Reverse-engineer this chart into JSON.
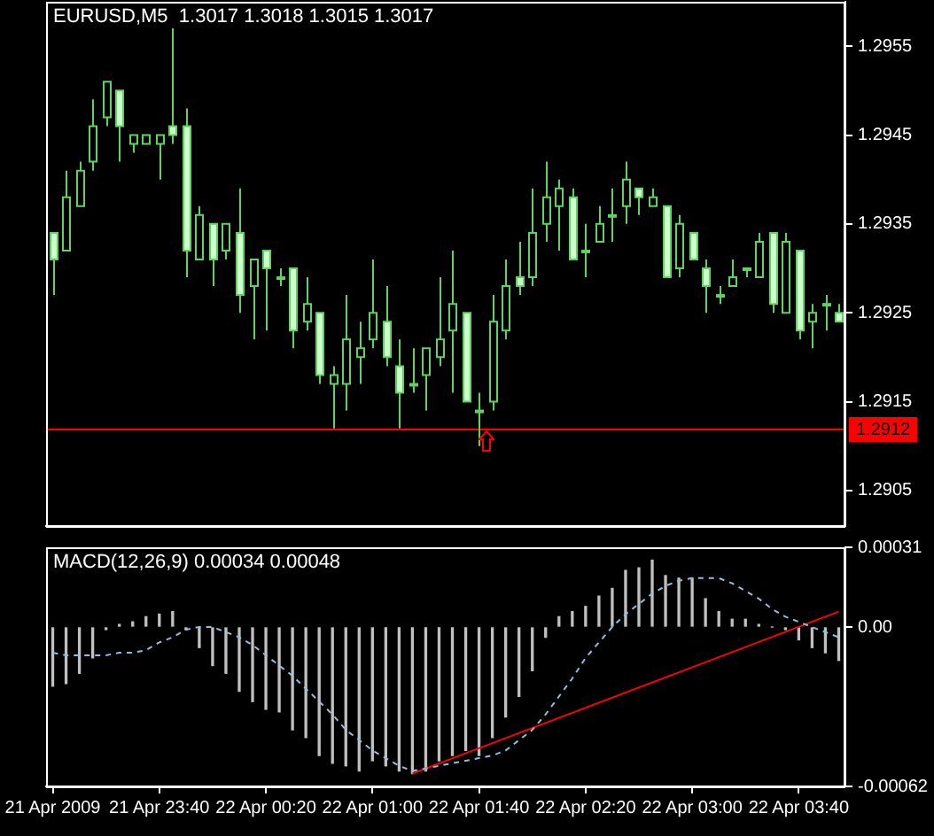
{
  "chart_data": [
    {
      "type": "candlestick",
      "title": "EURUSD,M5  1.3017 1.3018 1.3015 1.3017",
      "color": "#5fd35f",
      "ohlc": [
        [
          1.2934,
          1.2934,
          1.2927,
          1.2931
        ],
        [
          1.2932,
          1.2941,
          1.2932,
          1.2938
        ],
        [
          1.2937,
          1.2942,
          1.2937,
          1.2941
        ],
        [
          1.2942,
          1.2949,
          1.2941,
          1.2946
        ],
        [
          1.2947,
          1.2951,
          1.2946,
          1.2951
        ],
        [
          1.295,
          1.295,
          1.2942,
          1.2946
        ],
        [
          1.2944,
          1.2945,
          1.2943,
          1.2945
        ],
        [
          1.2944,
          1.2945,
          1.2944,
          1.2945
        ],
        [
          1.2944,
          1.2945,
          1.294,
          1.2945
        ],
        [
          1.2946,
          1.2957,
          1.2944,
          1.2945
        ],
        [
          1.2946,
          1.2948,
          1.2929,
          1.2932
        ],
        [
          1.2931,
          1.2937,
          1.2931,
          1.2936
        ],
        [
          1.2935,
          1.2935,
          1.2928,
          1.2931
        ],
        [
          1.2932,
          1.2935,
          1.2931,
          1.2935
        ],
        [
          1.2934,
          1.2939,
          1.2925,
          1.2927
        ],
        [
          1.2928,
          1.2931,
          1.2922,
          1.2931
        ],
        [
          1.2932,
          1.2932,
          1.2923,
          1.293
        ],
        [
          1.2929,
          1.293,
          1.2928,
          1.2929
        ],
        [
          1.293,
          1.293,
          1.2921,
          1.2923
        ],
        [
          1.2924,
          1.2929,
          1.2923,
          1.2926
        ],
        [
          1.2925,
          1.2925,
          1.2917,
          1.2918
        ],
        [
          1.2917,
          1.2919,
          1.2912,
          1.2918
        ],
        [
          1.2917,
          1.2927,
          1.2914,
          1.2922
        ],
        [
          1.292,
          1.2924,
          1.2917,
          1.2921
        ],
        [
          1.2922,
          1.2931,
          1.2921,
          1.2925
        ],
        [
          1.2924,
          1.2928,
          1.2919,
          1.292
        ],
        [
          1.2919,
          1.2922,
          1.2912,
          1.2916
        ],
        [
          1.2917,
          1.2921,
          1.2916,
          1.2917
        ],
        [
          1.2918,
          1.2921,
          1.2914,
          1.2921
        ],
        [
          1.292,
          1.2929,
          1.2919,
          1.2922
        ],
        [
          1.2923,
          1.2932,
          1.2916,
          1.2926
        ],
        [
          1.2925,
          1.2925,
          1.2915,
          1.2915
        ],
        [
          1.2914,
          1.2916,
          1.291,
          1.2914
        ],
        [
          1.2915,
          1.2927,
          1.2914,
          1.2924
        ],
        [
          1.2923,
          1.2931,
          1.2922,
          1.2928
        ],
        [
          1.2929,
          1.2933,
          1.2927,
          1.2928
        ],
        [
          1.2929,
          1.2939,
          1.2928,
          1.2934
        ],
        [
          1.2935,
          1.2942,
          1.2933,
          1.2938
        ],
        [
          1.2937,
          1.294,
          1.2932,
          1.2939
        ],
        [
          1.2938,
          1.2939,
          1.2931,
          1.2931
        ],
        [
          1.2932,
          1.2935,
          1.2929,
          1.2932
        ],
        [
          1.2933,
          1.2937,
          1.2933,
          1.2935
        ],
        [
          1.2936,
          1.2939,
          1.2933,
          1.2936
        ],
        [
          1.2937,
          1.2942,
          1.2935,
          1.294
        ],
        [
          1.2939,
          1.2939,
          1.2936,
          1.2938
        ],
        [
          1.2937,
          1.2939,
          1.2937,
          1.2938
        ],
        [
          1.2937,
          1.2937,
          1.2929,
          1.2929
        ],
        [
          1.293,
          1.2936,
          1.2929,
          1.2935
        ],
        [
          1.2934,
          1.2934,
          1.2931,
          1.2931
        ],
        [
          1.293,
          1.2931,
          1.2925,
          1.2928
        ],
        [
          1.2927,
          1.2928,
          1.2926,
          1.2927
        ],
        [
          1.2928,
          1.2931,
          1.2928,
          1.2929
        ],
        [
          1.293,
          1.293,
          1.2929,
          1.293
        ],
        [
          1.2929,
          1.2934,
          1.2929,
          1.2933
        ],
        [
          1.2934,
          1.2934,
          1.2925,
          1.2926
        ],
        [
          1.2925,
          1.2934,
          1.2925,
          1.2933
        ],
        [
          1.2932,
          1.2932,
          1.2922,
          1.2923
        ],
        [
          1.2924,
          1.2926,
          1.2921,
          1.2925
        ],
        [
          1.2926,
          1.2927,
          1.2923,
          1.2926
        ],
        [
          1.2925,
          1.2926,
          1.2924,
          1.2924
        ]
      ],
      "colors": [
        "#ccffcc",
        "#000000",
        "#000000",
        "#000000",
        "#000000",
        "#ccffcc",
        "#000000",
        "#000000",
        "#000000",
        "#ccffcc",
        "#ccffcc",
        "#000000",
        "#ccffcc",
        "#000000",
        "#ccffcc",
        "#000000",
        "#ccffcc",
        "#000000",
        "#ccffcc",
        "#000000",
        "#ccffcc",
        "#000000",
        "#000000",
        "#000000",
        "#000000",
        "#ccffcc",
        "#ccffcc",
        "#000000",
        "#000000",
        "#000000",
        "#000000",
        "#ccffcc",
        "#000000",
        "#000000",
        "#000000",
        "#ccffcc",
        "#000000",
        "#000000",
        "#000000",
        "#ccffcc",
        "#000000",
        "#000000",
        "#000000",
        "#000000",
        "#ccffcc",
        "#000000",
        "#ccffcc",
        "#000000",
        "#ccffcc",
        "#ccffcc",
        "#000000",
        "#000000",
        "#000000",
        "#000000",
        "#ccffcc",
        "#000000",
        "#ccffcc",
        "#000000",
        "#000000",
        "#ccffcc"
      ],
      "ylim": [
        1.2901,
        1.296
      ],
      "yticks": [
        1.2905,
        1.2915,
        1.2925,
        1.2935,
        1.2945,
        1.2955
      ],
      "ref_lines": [
        {
          "axis": "y",
          "value": 1.2912,
          "label": "1.2912",
          "color": "#ff0000"
        }
      ],
      "tick_labels": "y"
    },
    {
      "type": "bar",
      "title": "MACD(12,26,9) 0.00034 0.00048",
      "categories": [
        "21 Apr 2009",
        null,
        null,
        null,
        null,
        null,
        null,
        null,
        "21 Apr 23:40",
        null,
        null,
        null,
        null,
        null,
        null,
        null,
        "22 Apr 00:20",
        null,
        null,
        null,
        null,
        null,
        null,
        null,
        "22 Apr 01:00",
        null,
        null,
        null,
        null,
        null,
        null,
        null,
        "22 Apr 01:40",
        null,
        null,
        null,
        null,
        null,
        null,
        null,
        "22 Apr 02:20",
        null,
        null,
        null,
        null,
        null,
        null,
        null,
        "22 Apr 03:00",
        null,
        null,
        null,
        null,
        null,
        null,
        null,
        "22 Apr 03:40",
        null,
        null,
        null
      ],
      "series": [
        {
          "type": "bar",
          "color": "#c0c0c0",
          "values": [
            -0.00023,
            -0.00022,
            -0.00018,
            -0.00012,
            -1e-05,
            1e-05,
            2e-05,
            4e-05,
            5e-05,
            6e-05,
            -1e-05,
            -8e-05,
            -0.00015,
            -0.00018,
            -0.00025,
            -0.00029,
            -0.00032,
            -0.00033,
            -0.0004,
            -0.00043,
            -0.0005,
            -0.00053,
            -0.00054,
            -0.00056,
            -0.00052,
            -0.00054,
            -0.00056,
            -0.00057,
            -0.00056,
            -0.00052,
            -0.0005,
            -0.00048,
            -0.0005,
            -0.00043,
            -0.00035,
            -0.00027,
            -0.00017,
            -4e-05,
            4e-05,
            6e-05,
            8e-05,
            0.00012,
            0.00015,
            0.00022,
            0.00023,
            0.00026,
            0.0002,
            0.00019,
            0.00019,
            0.00011,
            6e-05,
            3e-05,
            3e-05,
            1e-05,
            0,
            -1e-05,
            -5e-05,
            -8e-05,
            -0.0001,
            -0.00013
          ]
        },
        {
          "type": "line",
          "color": "#8fbfdf",
          "line_style": "dashed",
          "values": [
            -0.0001,
            -0.00011,
            -0.00011,
            -0.00011,
            -0.00011,
            -0.0001,
            -0.0001,
            -9e-05,
            -6e-05,
            -4e-05,
            -1e-05,
            0,
            0,
            -2e-05,
            -4e-05,
            -7e-05,
            -0.00011,
            -0.00015,
            -0.00019,
            -0.00024,
            -0.00029,
            -0.00034,
            -0.0004,
            -0.00044,
            -0.00048,
            -0.00051,
            -0.00054,
            -0.00056,
            -0.00055,
            -0.00054,
            -0.00053,
            -0.00052,
            -0.00051,
            -0.0005,
            -0.00048,
            -0.00044,
            -0.0004,
            -0.00034,
            -0.00027,
            -0.0002,
            -0.00012,
            -6e-05,
            0,
            5e-05,
            9e-05,
            0.00013,
            0.00016,
            0.00018,
            0.00019,
            0.00019,
            0.00019,
            0.00017,
            0.00014,
            0.00011,
            7e-05,
            4e-05,
            2e-05,
            0,
            -2e-05,
            -4e-05
          ]
        },
        {
          "type": "line",
          "color": "#ff0000",
          "values": [
            null,
            null,
            null,
            null,
            null,
            null,
            null,
            null,
            null,
            null,
            null,
            null,
            null,
            null,
            null,
            null,
            null,
            null,
            null,
            null,
            null,
            null,
            null,
            null,
            null,
            null,
            null,
            -0.00057,
            null,
            null,
            null,
            null,
            null,
            null,
            null,
            null,
            null,
            null,
            null,
            null,
            null,
            null,
            null,
            null,
            null,
            null,
            null,
            null,
            null,
            null,
            null,
            null,
            null,
            null,
            null,
            null,
            null,
            null,
            null,
            6e-05
          ]
        }
      ],
      "ylim": [
        -0.00062,
        0.00031
      ],
      "yticks": [
        0.00031,
        {
          "value": 0,
          "label": "0.00"
        },
        -0.00062
      ]
    }
  ]
}
